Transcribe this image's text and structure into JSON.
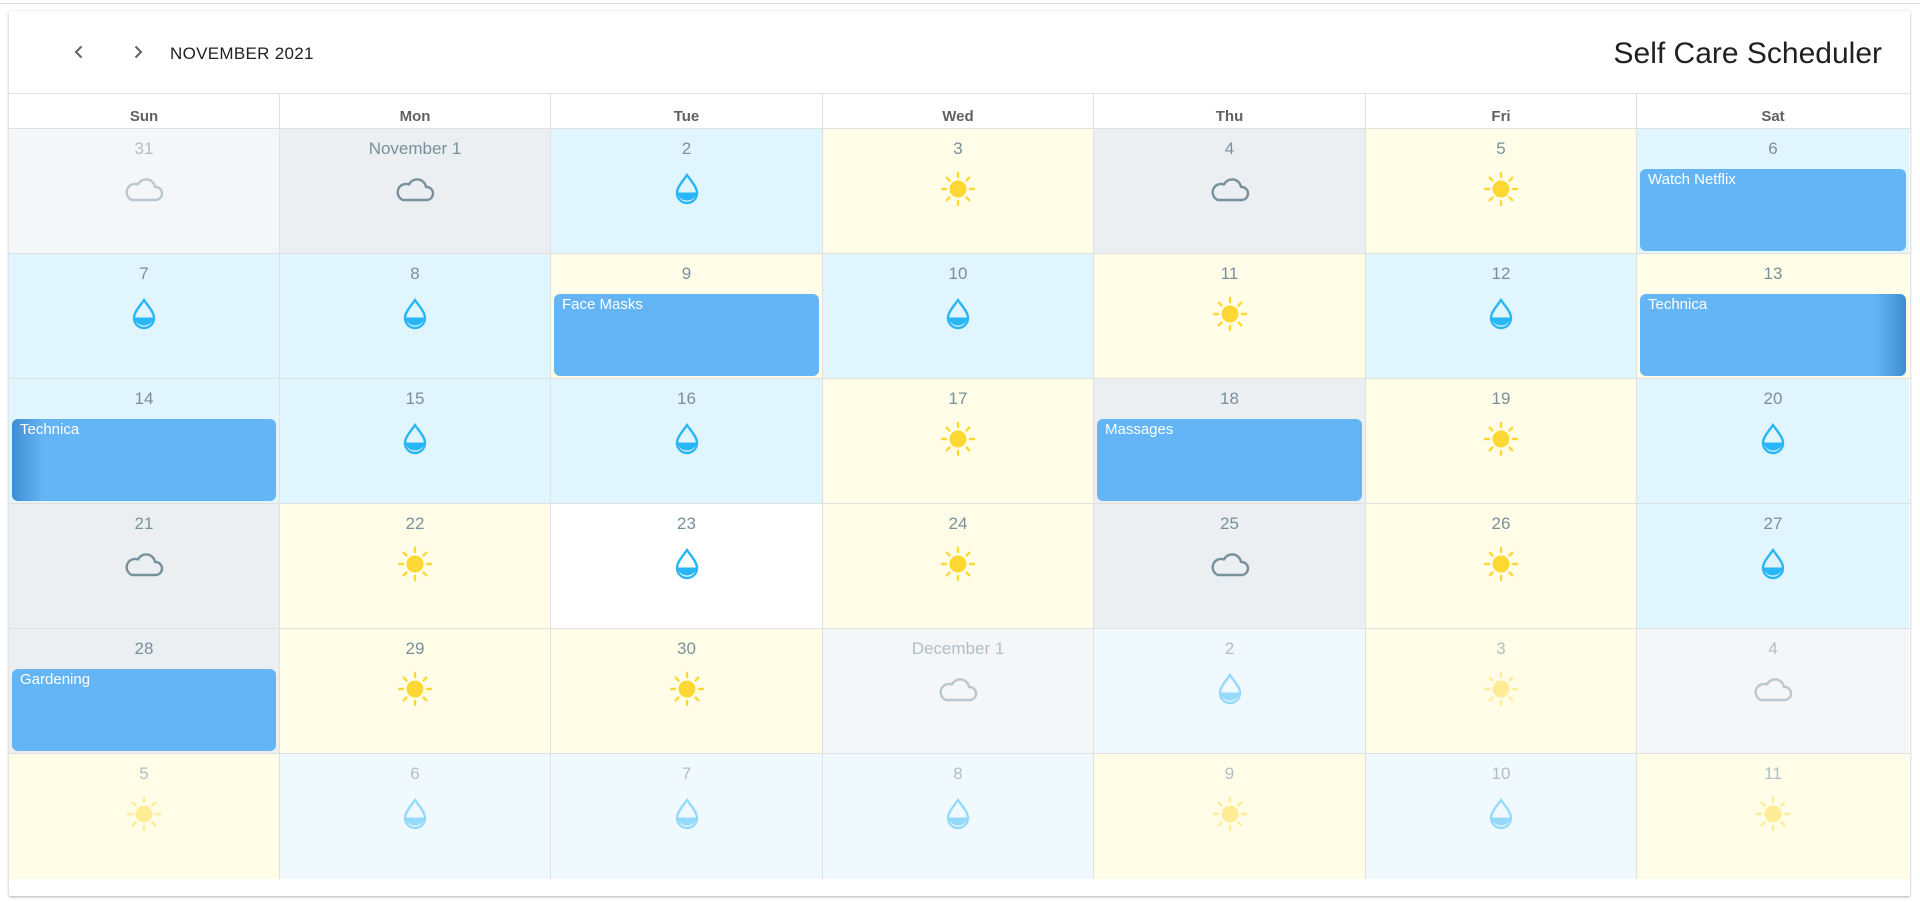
{
  "toolbar": {
    "prev_label": "previous-month",
    "next_label": "next-month",
    "month": "NOVEMBER 2021",
    "title": "Self Care Scheduler"
  },
  "weekdays": [
    "Sun",
    "Mon",
    "Tue",
    "Wed",
    "Thu",
    "Fri",
    "Sat"
  ],
  "colors": {
    "sunny_bg": "#fffde7",
    "rainy_bg": "#e1f5fe",
    "cloudy_bg": "#eceff1",
    "event_bg": "#64b5f6",
    "sun": "#fdd835",
    "drop": "#29b6f6",
    "cloud": "#78909c"
  },
  "weeks": [
    [
      {
        "label": "31",
        "weather": "cloudy",
        "other": true
      },
      {
        "label": "November 1",
        "weather": "cloudy"
      },
      {
        "label": "2",
        "weather": "rainy"
      },
      {
        "label": "3",
        "weather": "sunny"
      },
      {
        "label": "4",
        "weather": "cloudy"
      },
      {
        "label": "5",
        "weather": "sunny"
      },
      {
        "label": "6",
        "weather": "rainy",
        "event": "Watch Netflix"
      }
    ],
    [
      {
        "label": "7",
        "weather": "rainy"
      },
      {
        "label": "8",
        "weather": "rainy"
      },
      {
        "label": "9",
        "weather": "sunny",
        "event": "Face Masks"
      },
      {
        "label": "10",
        "weather": "rainy"
      },
      {
        "label": "11",
        "weather": "sunny"
      },
      {
        "label": "12",
        "weather": "rainy"
      },
      {
        "label": "13",
        "weather": "sunny",
        "event": "Technica",
        "fade": "right"
      }
    ],
    [
      {
        "label": "14",
        "weather": "rainy",
        "event": "Technica",
        "fade": "left"
      },
      {
        "label": "15",
        "weather": "rainy"
      },
      {
        "label": "16",
        "weather": "rainy"
      },
      {
        "label": "17",
        "weather": "sunny"
      },
      {
        "label": "18",
        "weather": "cloudy",
        "event": "Massages"
      },
      {
        "label": "19",
        "weather": "sunny"
      },
      {
        "label": "20",
        "weather": "rainy"
      }
    ],
    [
      {
        "label": "21",
        "weather": "cloudy"
      },
      {
        "label": "22",
        "weather": "sunny"
      },
      {
        "label": "23",
        "weather": "rainy",
        "plain": true
      },
      {
        "label": "24",
        "weather": "sunny"
      },
      {
        "label": "25",
        "weather": "cloudy"
      },
      {
        "label": "26",
        "weather": "sunny"
      },
      {
        "label": "27",
        "weather": "rainy"
      }
    ],
    [
      {
        "label": "28",
        "weather": "cloudy",
        "event": "Gardening"
      },
      {
        "label": "29",
        "weather": "sunny"
      },
      {
        "label": "30",
        "weather": "sunny"
      },
      {
        "label": "December 1",
        "weather": "cloudy",
        "other": true
      },
      {
        "label": "2",
        "weather": "rainy",
        "other": true
      },
      {
        "label": "3",
        "weather": "sunny",
        "other": true
      },
      {
        "label": "4",
        "weather": "cloudy",
        "other": true
      }
    ],
    [
      {
        "label": "5",
        "weather": "sunny",
        "other": true
      },
      {
        "label": "6",
        "weather": "rainy",
        "other": true
      },
      {
        "label": "7",
        "weather": "rainy",
        "other": true
      },
      {
        "label": "8",
        "weather": "rainy",
        "other": true
      },
      {
        "label": "9",
        "weather": "sunny",
        "other": true
      },
      {
        "label": "10",
        "weather": "rainy",
        "other": true
      },
      {
        "label": "11",
        "weather": "sunny",
        "other": true
      }
    ]
  ]
}
